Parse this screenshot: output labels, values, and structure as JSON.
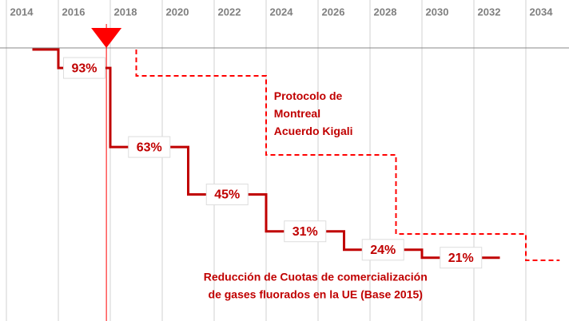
{
  "chart_data": {
    "type": "step",
    "xlim": [
      2014,
      2035.6
    ],
    "ylim": [
      0,
      100
    ],
    "xticks": [
      2014,
      2016,
      2018,
      2020,
      2022,
      2024,
      2026,
      2028,
      2030,
      2032,
      2034
    ],
    "grid": true,
    "marker_x": 2017.85,
    "marker_color": "#ff0000",
    "series": [
      {
        "color": "#c00000",
        "dashed": false,
        "x": [
          2015,
          2016,
          2018,
          2021,
          2024,
          2027,
          2030,
          2033
        ],
        "values": [
          100,
          93,
          63,
          45,
          31,
          24,
          21,
          21
        ],
        "value_labels": [
          null,
          "93%",
          "63%",
          "45%",
          "31%",
          "24%",
          "21%",
          null
        ]
      },
      {
        "color": "#ff0000",
        "dashed": true,
        "x": [
          2019,
          2019,
          2024,
          2029,
          2034,
          2035.3
        ],
        "values": [
          100,
          90,
          60,
          30,
          20,
          20
        ]
      }
    ],
    "annotations": [
      {
        "lines": [
          "Protocolo de",
          "Montreal",
          "Acuerdo Kigali"
        ],
        "x": 2024.3,
        "y": 82,
        "anchor": "start"
      },
      {
        "lines": [
          "Reducción  de Cuotas de comercialización",
          "de gases fluorados en la UE (Base 2015)"
        ],
        "x": 2025.9,
        "y": 13.4,
        "anchor": "middle"
      }
    ]
  }
}
